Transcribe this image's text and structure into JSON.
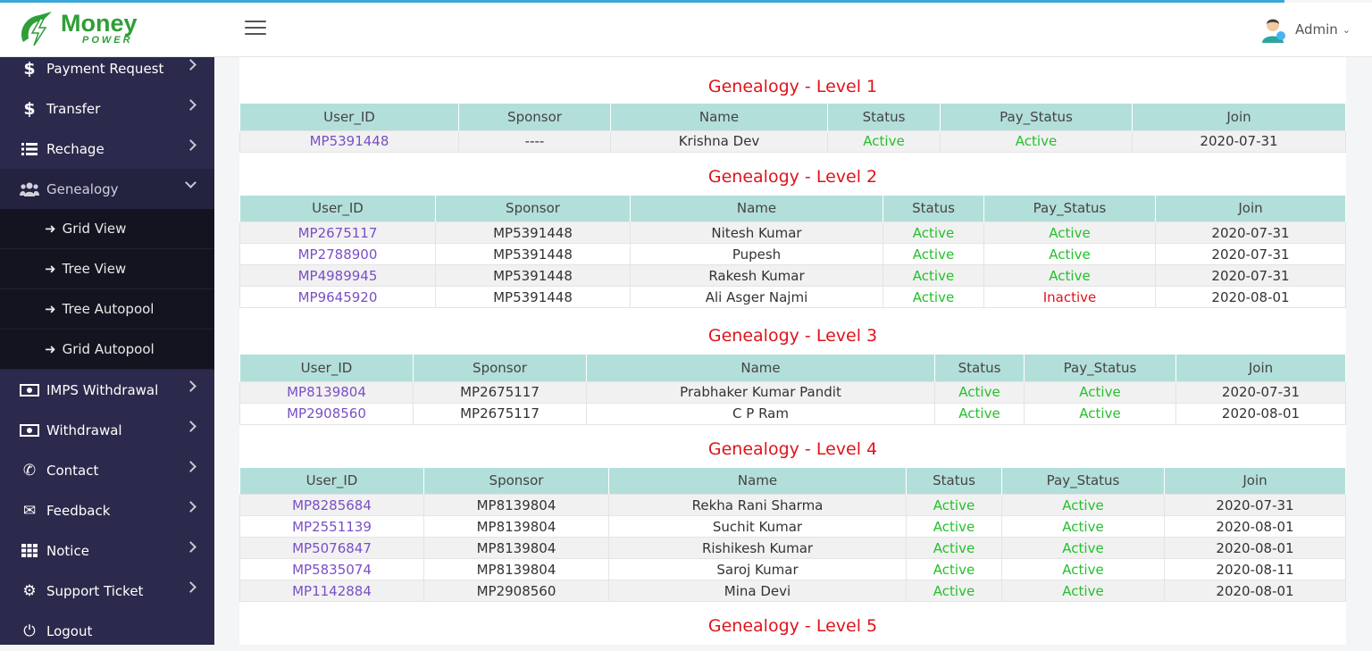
{
  "brand": {
    "name": "Money",
    "tagline": "POWER"
  },
  "header": {
    "user_name": "Admin"
  },
  "colors": {
    "accent": "#3aa8d8",
    "sidebar_bg": "#2b2a4c",
    "title_red": "#e0141b",
    "status_green": "#25c02c",
    "table_head": "#b3dfdb"
  },
  "sidebar": {
    "items_top": [
      {
        "label": "Payment Request",
        "icon": "dollar-icon"
      },
      {
        "label": "Transfer",
        "icon": "dollar-icon"
      },
      {
        "label": "Rechage",
        "icon": "list-icon"
      },
      {
        "label": "Genealogy",
        "icon": "users-icon"
      }
    ],
    "genealogy_sub": [
      {
        "label": "Grid View"
      },
      {
        "label": "Tree View"
      },
      {
        "label": "Tree Autopool"
      },
      {
        "label": "Grid Autopool"
      }
    ],
    "items_bottom": [
      {
        "label": "IMPS Withdrawal",
        "icon": "money-icon"
      },
      {
        "label": "Withdrawal",
        "icon": "money-icon"
      },
      {
        "label": "Contact",
        "icon": "phone-icon"
      },
      {
        "label": "Feedback",
        "icon": "envelope-icon"
      },
      {
        "label": "Notice",
        "icon": "grid-icon"
      },
      {
        "label": "Support Ticket",
        "icon": "gear-icon"
      },
      {
        "label": "Logout",
        "icon": "power-icon"
      }
    ]
  },
  "table_headers": [
    "User_ID",
    "Sponsor",
    "Name",
    "Status",
    "Pay_Status",
    "Join"
  ],
  "levels": [
    {
      "title": "Genealogy - Level 1",
      "rows": [
        {
          "user_id": "MP5391448",
          "sponsor": "----",
          "name": "Krishna Dev",
          "status": "Active",
          "pay_status": "Active",
          "join": "2020-07-31"
        }
      ]
    },
    {
      "title": "Genealogy - Level 2",
      "rows": [
        {
          "user_id": "MP2675117",
          "sponsor": "MP5391448",
          "name": "Nitesh Kumar",
          "status": "Active",
          "pay_status": "Active",
          "join": "2020-07-31"
        },
        {
          "user_id": "MP2788900",
          "sponsor": "MP5391448",
          "name": "Pupesh",
          "status": "Active",
          "pay_status": "Active",
          "join": "2020-07-31"
        },
        {
          "user_id": "MP4989945",
          "sponsor": "MP5391448",
          "name": "Rakesh Kumar",
          "status": "Active",
          "pay_status": "Active",
          "join": "2020-07-31"
        },
        {
          "user_id": "MP9645920",
          "sponsor": "MP5391448",
          "name": "Ali Asger Najmi",
          "status": "Active",
          "pay_status": "Inactive",
          "join": "2020-08-01"
        }
      ]
    },
    {
      "title": "Genealogy - Level 3",
      "rows": [
        {
          "user_id": "MP8139804",
          "sponsor": "MP2675117",
          "name": "Prabhaker Kumar Pandit",
          "status": "Active",
          "pay_status": "Active",
          "join": "2020-07-31"
        },
        {
          "user_id": "MP2908560",
          "sponsor": "MP2675117",
          "name": "C P Ram",
          "status": "Active",
          "pay_status": "Active",
          "join": "2020-08-01"
        }
      ]
    },
    {
      "title": "Genealogy - Level 4",
      "rows": [
        {
          "user_id": "MP8285684",
          "sponsor": "MP8139804",
          "name": "Rekha Rani Sharma",
          "status": "Active",
          "pay_status": "Active",
          "join": "2020-07-31"
        },
        {
          "user_id": "MP2551139",
          "sponsor": "MP8139804",
          "name": "Suchit Kumar",
          "status": "Active",
          "pay_status": "Active",
          "join": "2020-08-01"
        },
        {
          "user_id": "MP5076847",
          "sponsor": "MP8139804",
          "name": "Rishikesh Kumar",
          "status": "Active",
          "pay_status": "Active",
          "join": "2020-08-01"
        },
        {
          "user_id": "MP5835074",
          "sponsor": "MP8139804",
          "name": "Saroj Kumar",
          "status": "Active",
          "pay_status": "Active",
          "join": "2020-08-11"
        },
        {
          "user_id": "MP1142884",
          "sponsor": "MP2908560",
          "name": "Mina Devi",
          "status": "Active",
          "pay_status": "Active",
          "join": "2020-08-01"
        }
      ]
    },
    {
      "title": "Genealogy - Level 5",
      "rows": []
    }
  ]
}
